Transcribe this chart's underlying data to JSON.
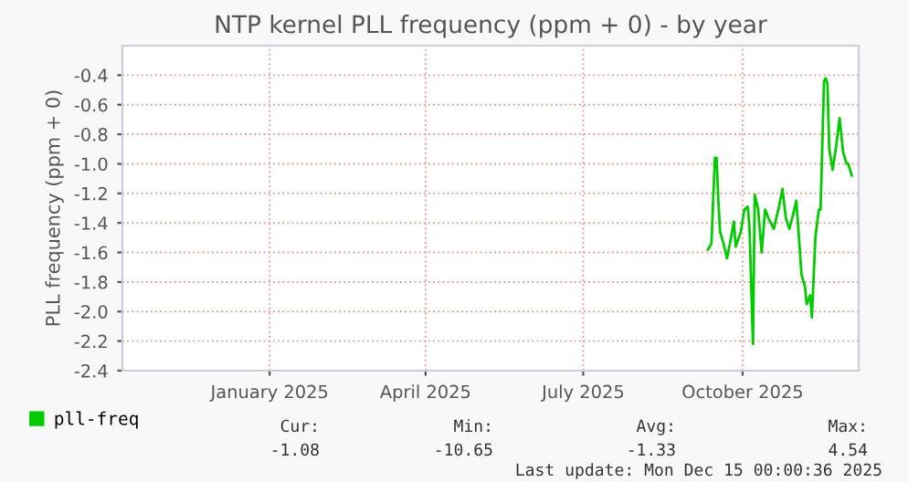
{
  "chart_data": {
    "type": "line",
    "title": "NTP kernel PLL frequency (ppm + 0) - by year",
    "ylabel": "PLL frequency (ppm + 0)",
    "x": [
      "2025-09-11",
      "2025-09-13",
      "2025-09-15",
      "2025-09-16",
      "2025-09-17",
      "2025-09-18",
      "2025-09-20",
      "2025-09-22",
      "2025-09-24",
      "2025-09-26",
      "2025-09-27",
      "2025-09-30",
      "2025-10-02",
      "2025-10-04",
      "2025-10-05",
      "2025-10-07",
      "2025-10-08",
      "2025-10-10",
      "2025-10-12",
      "2025-10-14",
      "2025-10-16",
      "2025-10-19",
      "2025-10-22",
      "2025-10-24",
      "2025-10-26",
      "2025-10-28",
      "2025-10-30",
      "2025-11-01",
      "2025-11-02",
      "2025-11-04",
      "2025-11-06",
      "2025-11-07",
      "2025-11-09",
      "2025-11-10",
      "2025-11-12",
      "2025-11-14",
      "2025-11-15",
      "2025-11-17",
      "2025-11-18",
      "2025-11-19",
      "2025-11-20",
      "2025-11-22",
      "2025-11-24",
      "2025-11-26",
      "2025-11-28",
      "2025-11-30",
      "2025-12-01",
      "2025-12-03"
    ],
    "series": [
      {
        "name": "pll-freq",
        "color": "#00cc00",
        "values": [
          -1.58,
          -1.54,
          -0.96,
          -0.96,
          -1.25,
          -1.46,
          -1.54,
          -1.64,
          -1.52,
          -1.39,
          -1.56,
          -1.46,
          -1.31,
          -1.29,
          -1.44,
          -2.22,
          -1.21,
          -1.31,
          -1.6,
          -1.31,
          -1.37,
          -1.44,
          -1.29,
          -1.17,
          -1.37,
          -1.44,
          -1.35,
          -1.25,
          -1.41,
          -1.75,
          -1.83,
          -1.95,
          -1.89,
          -2.04,
          -1.5,
          -1.31,
          -1.31,
          -0.44,
          -0.42,
          -0.46,
          -0.9,
          -1.04,
          -0.88,
          -0.69,
          -0.92,
          -1.0,
          -1.0,
          -1.08
        ]
      }
    ],
    "xlim": [
      "2024-10-08",
      "2025-12-07"
    ],
    "xticks": [
      {
        "value": "2025-01-01",
        "label": "January 2025"
      },
      {
        "value": "2025-04-01",
        "label": "April 2025"
      },
      {
        "value": "2025-07-01",
        "label": "July 2025"
      },
      {
        "value": "2025-10-01",
        "label": "October 2025"
      }
    ],
    "ylim": [
      -2.4,
      -0.2
    ],
    "yticks": [
      -2.4,
      -2.2,
      {
        "value": -2,
        "label": "-2.0"
      },
      -1.8,
      -1.6,
      -1.4,
      -1.2,
      {
        "value": -1,
        "label": "-1.0"
      },
      -0.8,
      -0.6,
      -0.4
    ],
    "grid": true,
    "legend": "bottom left",
    "annotations": [
      "Cur:",
      "Min:",
      "Avg:",
      "Max:",
      "-1.08",
      "-10.65",
      "-1.33",
      "4.54",
      "Last update: Mon Dec 15 00:00:36 2025"
    ]
  }
}
